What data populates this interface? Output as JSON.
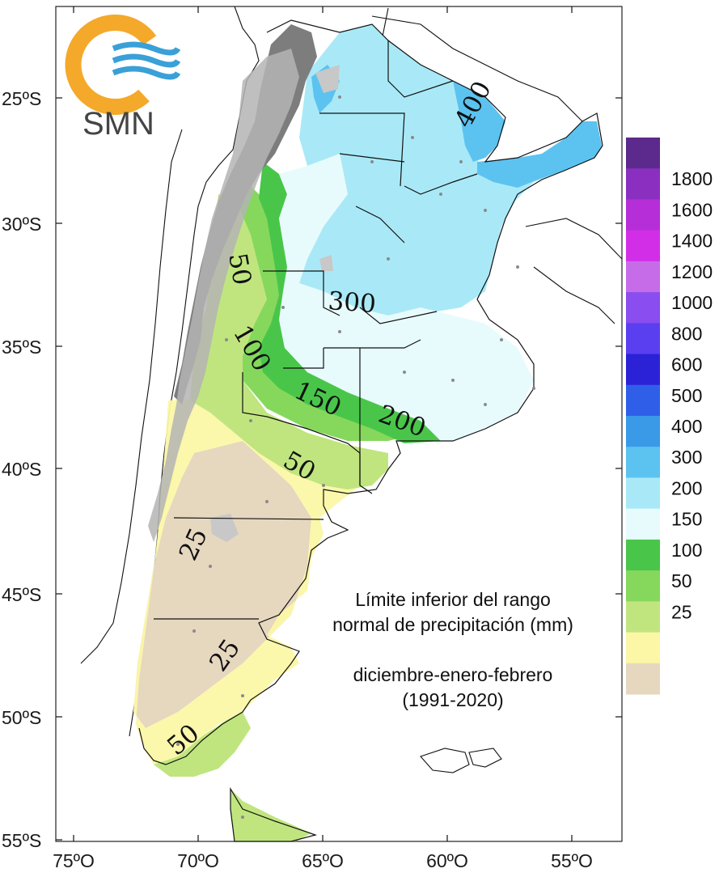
{
  "logo": {
    "text": "SMN"
  },
  "map": {
    "lat_labels": [
      "25ºS",
      "30ºS",
      "35ºS",
      "40ºS",
      "45ºS",
      "50ºS",
      "55ºS"
    ],
    "lon_labels": [
      "75ºO",
      "70ºO",
      "65ºO",
      "60ºO",
      "55ºO"
    ],
    "contour_labels": [
      "400",
      "300",
      "200",
      "150",
      "100",
      "50",
      "25",
      "25",
      "50",
      "50"
    ]
  },
  "title": {
    "line1": "Límite inferior del rango",
    "line2": "normal de precipitación (mm)",
    "line3": "diciembre-enero-febrero",
    "line4": "(1991-2020)"
  },
  "legend": {
    "labels": [
      "1800",
      "1600",
      "1400",
      "1200",
      "1000",
      "800",
      "600",
      "500",
      "400",
      "300",
      "200",
      "150",
      "100",
      "50",
      "25"
    ],
    "colors": [
      "#5b2a8c",
      "#8a2fc0",
      "#b52ed8",
      "#d22ee8",
      "#c66ce8",
      "#8a4df0",
      "#5a3ff0",
      "#2b22d8",
      "#2f5fe8",
      "#3a9ae8",
      "#5cc3f0",
      "#a9e9f7",
      "#e8fbfc",
      "#49c64a",
      "#86d85c",
      "#c0e57f",
      "#fbf7a6",
      "#e6d7bf"
    ]
  },
  "colors": {
    "beige": "#e6d7bf",
    "yellow": "#fbf7a6",
    "lightgreen": "#c0e57f",
    "green": "#86d85c",
    "darkgreen": "#49c64a",
    "verylight": "#e8fbfc",
    "lightblue": "#a9e9f7",
    "blue": "#5cc3f0",
    "mountain": "#8a8a8a"
  }
}
